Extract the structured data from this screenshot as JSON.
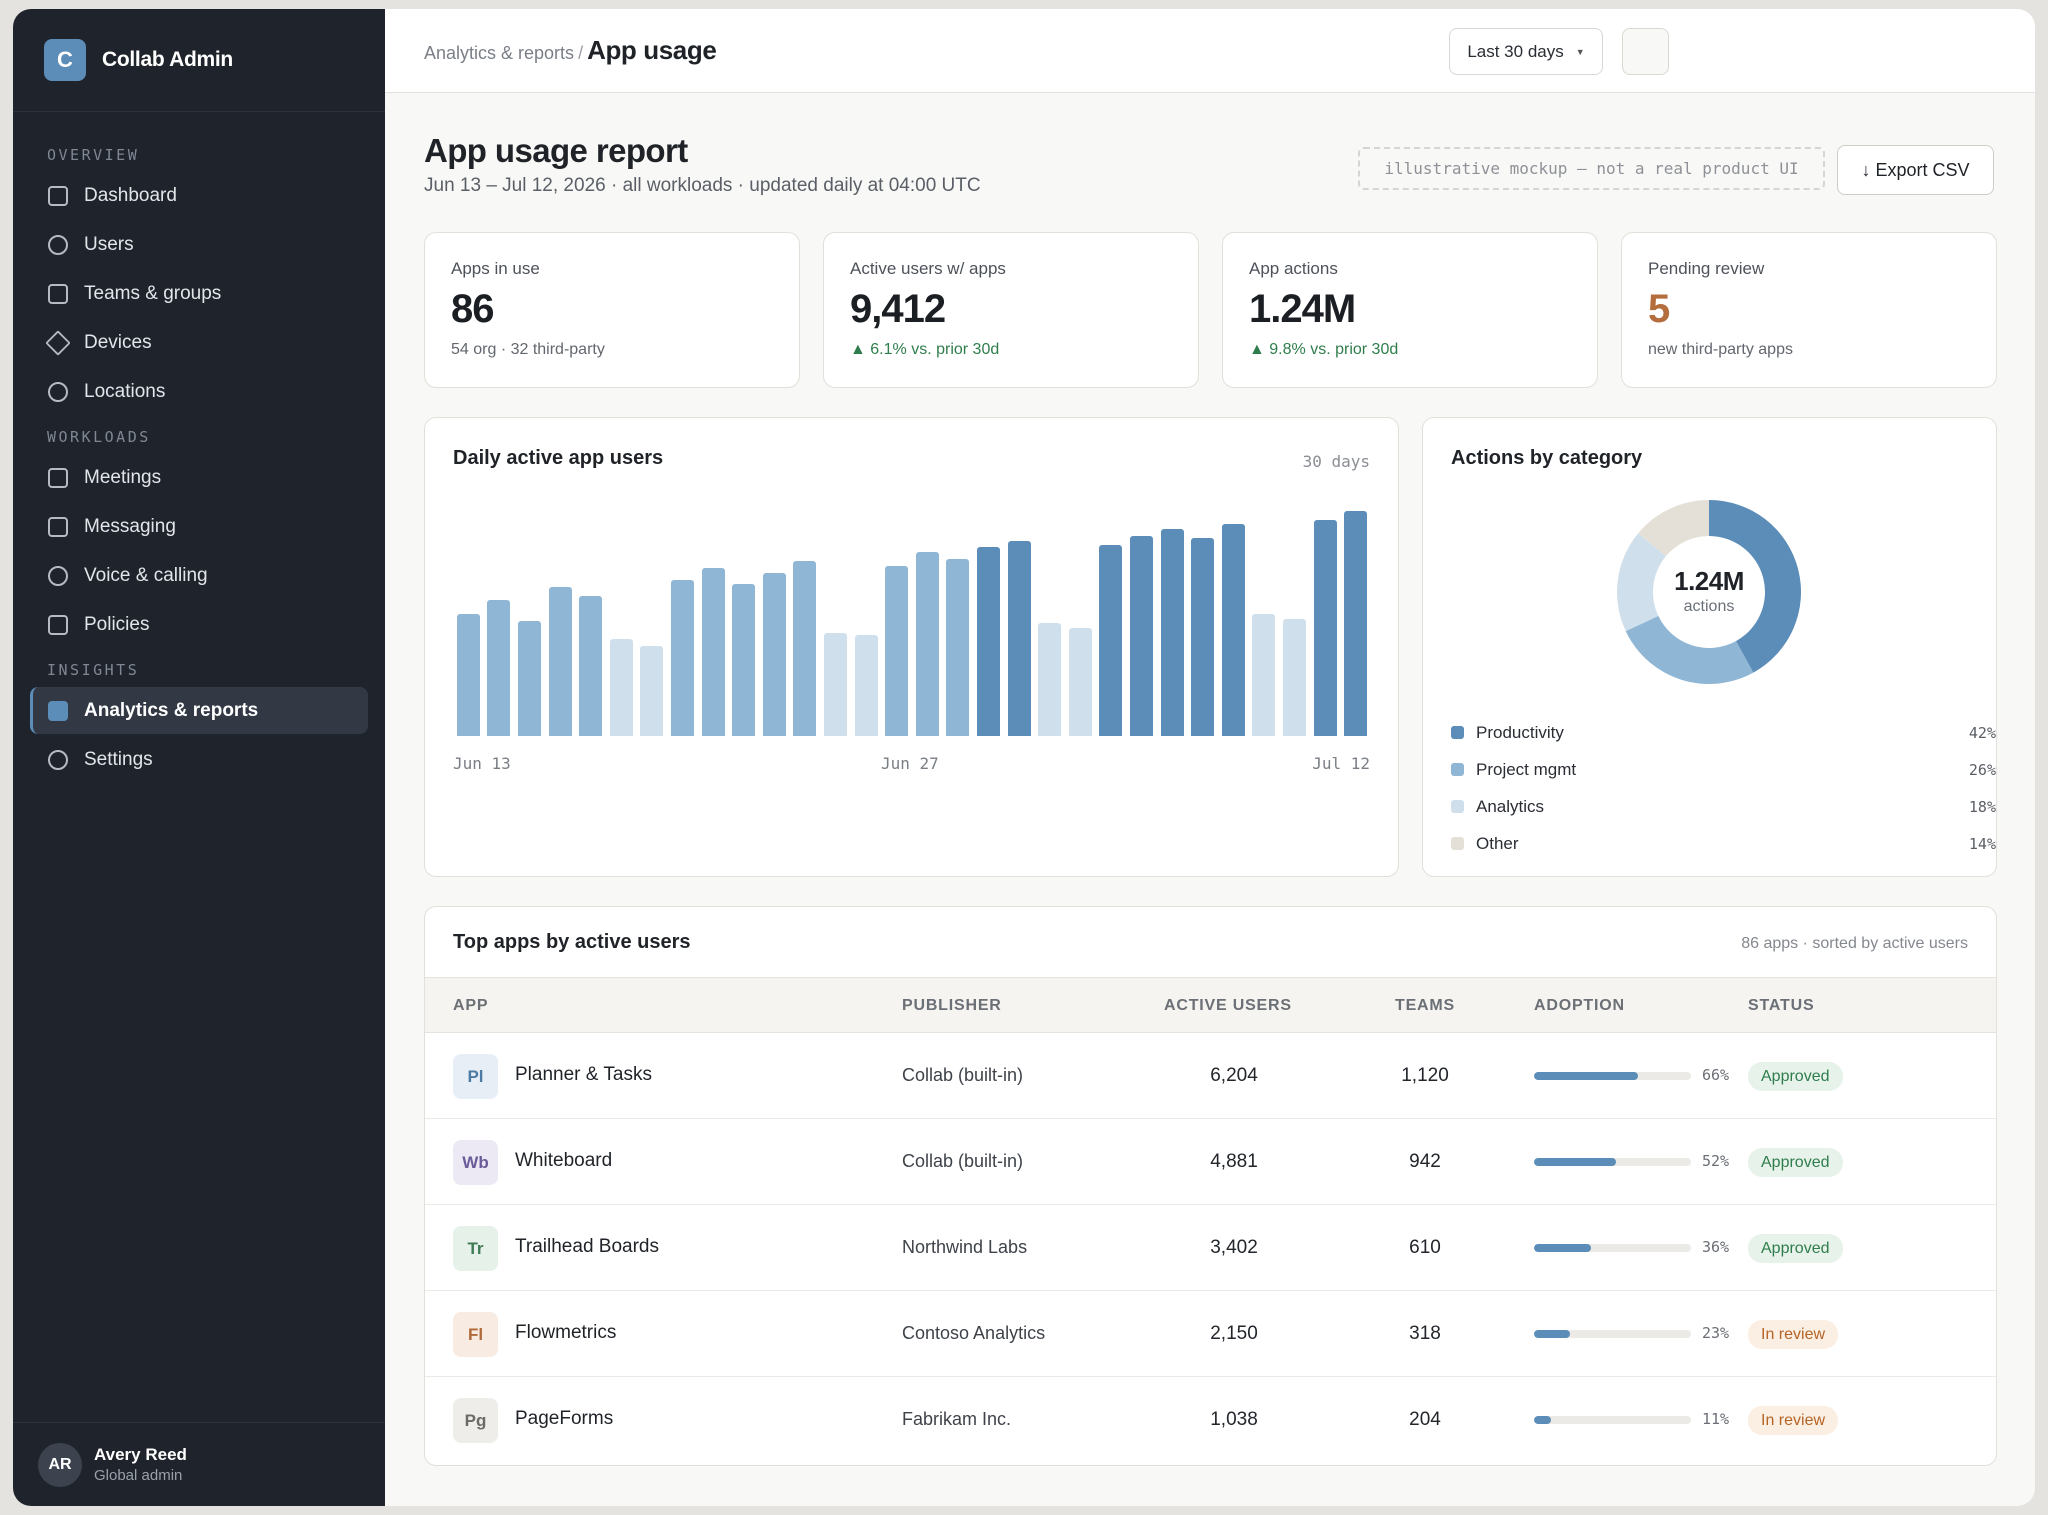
{
  "sidebar": {
    "brand": {
      "logo": "C",
      "name": "Collab Admin"
    },
    "sections": [
      {
        "label": "OVERVIEW",
        "items": [
          {
            "label": "Dashboard",
            "icon": "square-icon"
          },
          {
            "label": "Users",
            "icon": "circle-icon"
          },
          {
            "label": "Teams & groups",
            "icon": "square-icon"
          },
          {
            "label": "Devices",
            "icon": "diamond-icon"
          },
          {
            "label": "Locations",
            "icon": "circle-icon"
          }
        ]
      },
      {
        "label": "WORKLOADS",
        "items": [
          {
            "label": "Meetings",
            "icon": "square-icon"
          },
          {
            "label": "Messaging",
            "icon": "square-icon"
          },
          {
            "label": "Voice & calling",
            "icon": "circle-icon"
          },
          {
            "label": "Policies",
            "icon": "square-icon"
          }
        ]
      },
      {
        "label": "INSIGHTS",
        "items": [
          {
            "label": "Analytics & reports",
            "icon": "square-icon",
            "active": true
          },
          {
            "label": "Settings",
            "icon": "circle-icon"
          }
        ]
      }
    ],
    "user": {
      "initials": "AR",
      "name": "Avery Reed",
      "role": "Global admin"
    }
  },
  "topbar": {
    "breadcrumb_parent": "Analytics & reports",
    "breadcrumb_sep": "/",
    "breadcrumb_current": "App usage",
    "range_label": "Last 30 days"
  },
  "page": {
    "title": "App usage report",
    "subtitle": "Jun 13 – Jul 12, 2026 · all workloads · updated daily at 04:00 UTC",
    "mock_tag": "illustrative mockup — not a real product UI",
    "export_label": "↓ Export CSV"
  },
  "kpis": [
    {
      "label": "Apps in use",
      "value": "86",
      "sub": "54 org · 32 third-party",
      "trend": "none"
    },
    {
      "label": "Active users w/ apps",
      "value": "9,412",
      "sub": "▲ 6.1% vs. prior 30d",
      "trend": "up"
    },
    {
      "label": "App actions",
      "value": "1.24M",
      "sub": "▲ 9.8% vs. prior 30d",
      "trend": "up"
    },
    {
      "label": "Pending review",
      "value": "5",
      "sub": "new third-party apps",
      "trend": "warn"
    }
  ],
  "daily_chart": {
    "title": "Daily active app users",
    "meta": "30 days",
    "x_ticks": [
      "Jun 13",
      "Jun 27",
      "Jul 12"
    ]
  },
  "category_chart": {
    "title": "Actions by category",
    "center_value": "1.24M",
    "center_label": "actions"
  },
  "chart_data": [
    {
      "type": "bar",
      "title": "Daily active app users",
      "x_ticks": [
        "Jun 13",
        "Jun 27",
        "Jul 12"
      ],
      "values": [
        53,
        59,
        50,
        65,
        61,
        42,
        39,
        68,
        73,
        66,
        71,
        76,
        45,
        44,
        74,
        80,
        77,
        82,
        85,
        49,
        47,
        83,
        87,
        90,
        86,
        92,
        53,
        51,
        94,
        98
      ],
      "tiers": [
        2,
        2,
        2,
        2,
        2,
        1,
        1,
        2,
        2,
        2,
        2,
        2,
        1,
        1,
        2,
        2,
        2,
        3,
        3,
        1,
        1,
        3,
        3,
        3,
        3,
        3,
        1,
        1,
        3,
        3
      ],
      "tier_colors": {
        "1": "#cfe0ec",
        "2": "#8fb6d4",
        "3": "#5b8db8"
      },
      "ylim": [
        0,
        100
      ]
    },
    {
      "type": "pie",
      "title": "Actions by category",
      "slices": [
        {
          "name": "Productivity",
          "value": 42,
          "label": "42%",
          "color": "#5b8db8"
        },
        {
          "name": "Project mgmt",
          "value": 26,
          "label": "26%",
          "color": "#8fb6d4"
        },
        {
          "name": "Analytics",
          "value": 18,
          "label": "18%",
          "color": "#cfe0ec"
        },
        {
          "name": "Other",
          "value": 14,
          "label": "14%",
          "color": "#e4e0d8"
        }
      ]
    }
  ],
  "table": {
    "title": "Top apps by active users",
    "meta": "86 apps · sorted by active users",
    "columns": [
      "APP",
      "PUBLISHER",
      "ACTIVE USERS",
      "TEAMS",
      "ADOPTION",
      "STATUS"
    ],
    "rows": [
      {
        "abbr": "Pl",
        "badge_bg": "#e7eef6",
        "badge_fg": "#4d7aa3",
        "name": "Planner & Tasks",
        "publisher": "Collab (built-in)",
        "active_users": "6,204",
        "teams": "1,120",
        "adoption": 66,
        "adoption_label": "66%",
        "status": "Approved",
        "status_kind": "ok"
      },
      {
        "abbr": "Wb",
        "badge_bg": "#ece9f4",
        "badge_fg": "#6b5b98",
        "name": "Whiteboard",
        "publisher": "Collab (built-in)",
        "active_users": "4,881",
        "teams": "942",
        "adoption": 52,
        "adoption_label": "52%",
        "status": "Approved",
        "status_kind": "ok"
      },
      {
        "abbr": "Tr",
        "badge_bg": "#e6f1ea",
        "badge_fg": "#3d7a55",
        "name": "Trailhead Boards",
        "publisher": "Northwind Labs",
        "active_users": "3,402",
        "teams": "610",
        "adoption": 36,
        "adoption_label": "36%",
        "status": "Approved",
        "status_kind": "ok"
      },
      {
        "abbr": "Fl",
        "badge_bg": "#f8ebe2",
        "badge_fg": "#b06a3c",
        "name": "Flowmetrics",
        "publisher": "Contoso Analytics",
        "active_users": "2,150",
        "teams": "318",
        "adoption": 23,
        "adoption_label": "23%",
        "status": "In review",
        "status_kind": "rev"
      },
      {
        "abbr": "Pg",
        "badge_bg": "#efedea",
        "badge_fg": "#6c6a66",
        "name": "PageForms",
        "publisher": "Fabrikam Inc.",
        "active_users": "1,038",
        "teams": "204",
        "adoption": 11,
        "adoption_label": "11%",
        "status": "In review",
        "status_kind": "rev"
      }
    ]
  }
}
